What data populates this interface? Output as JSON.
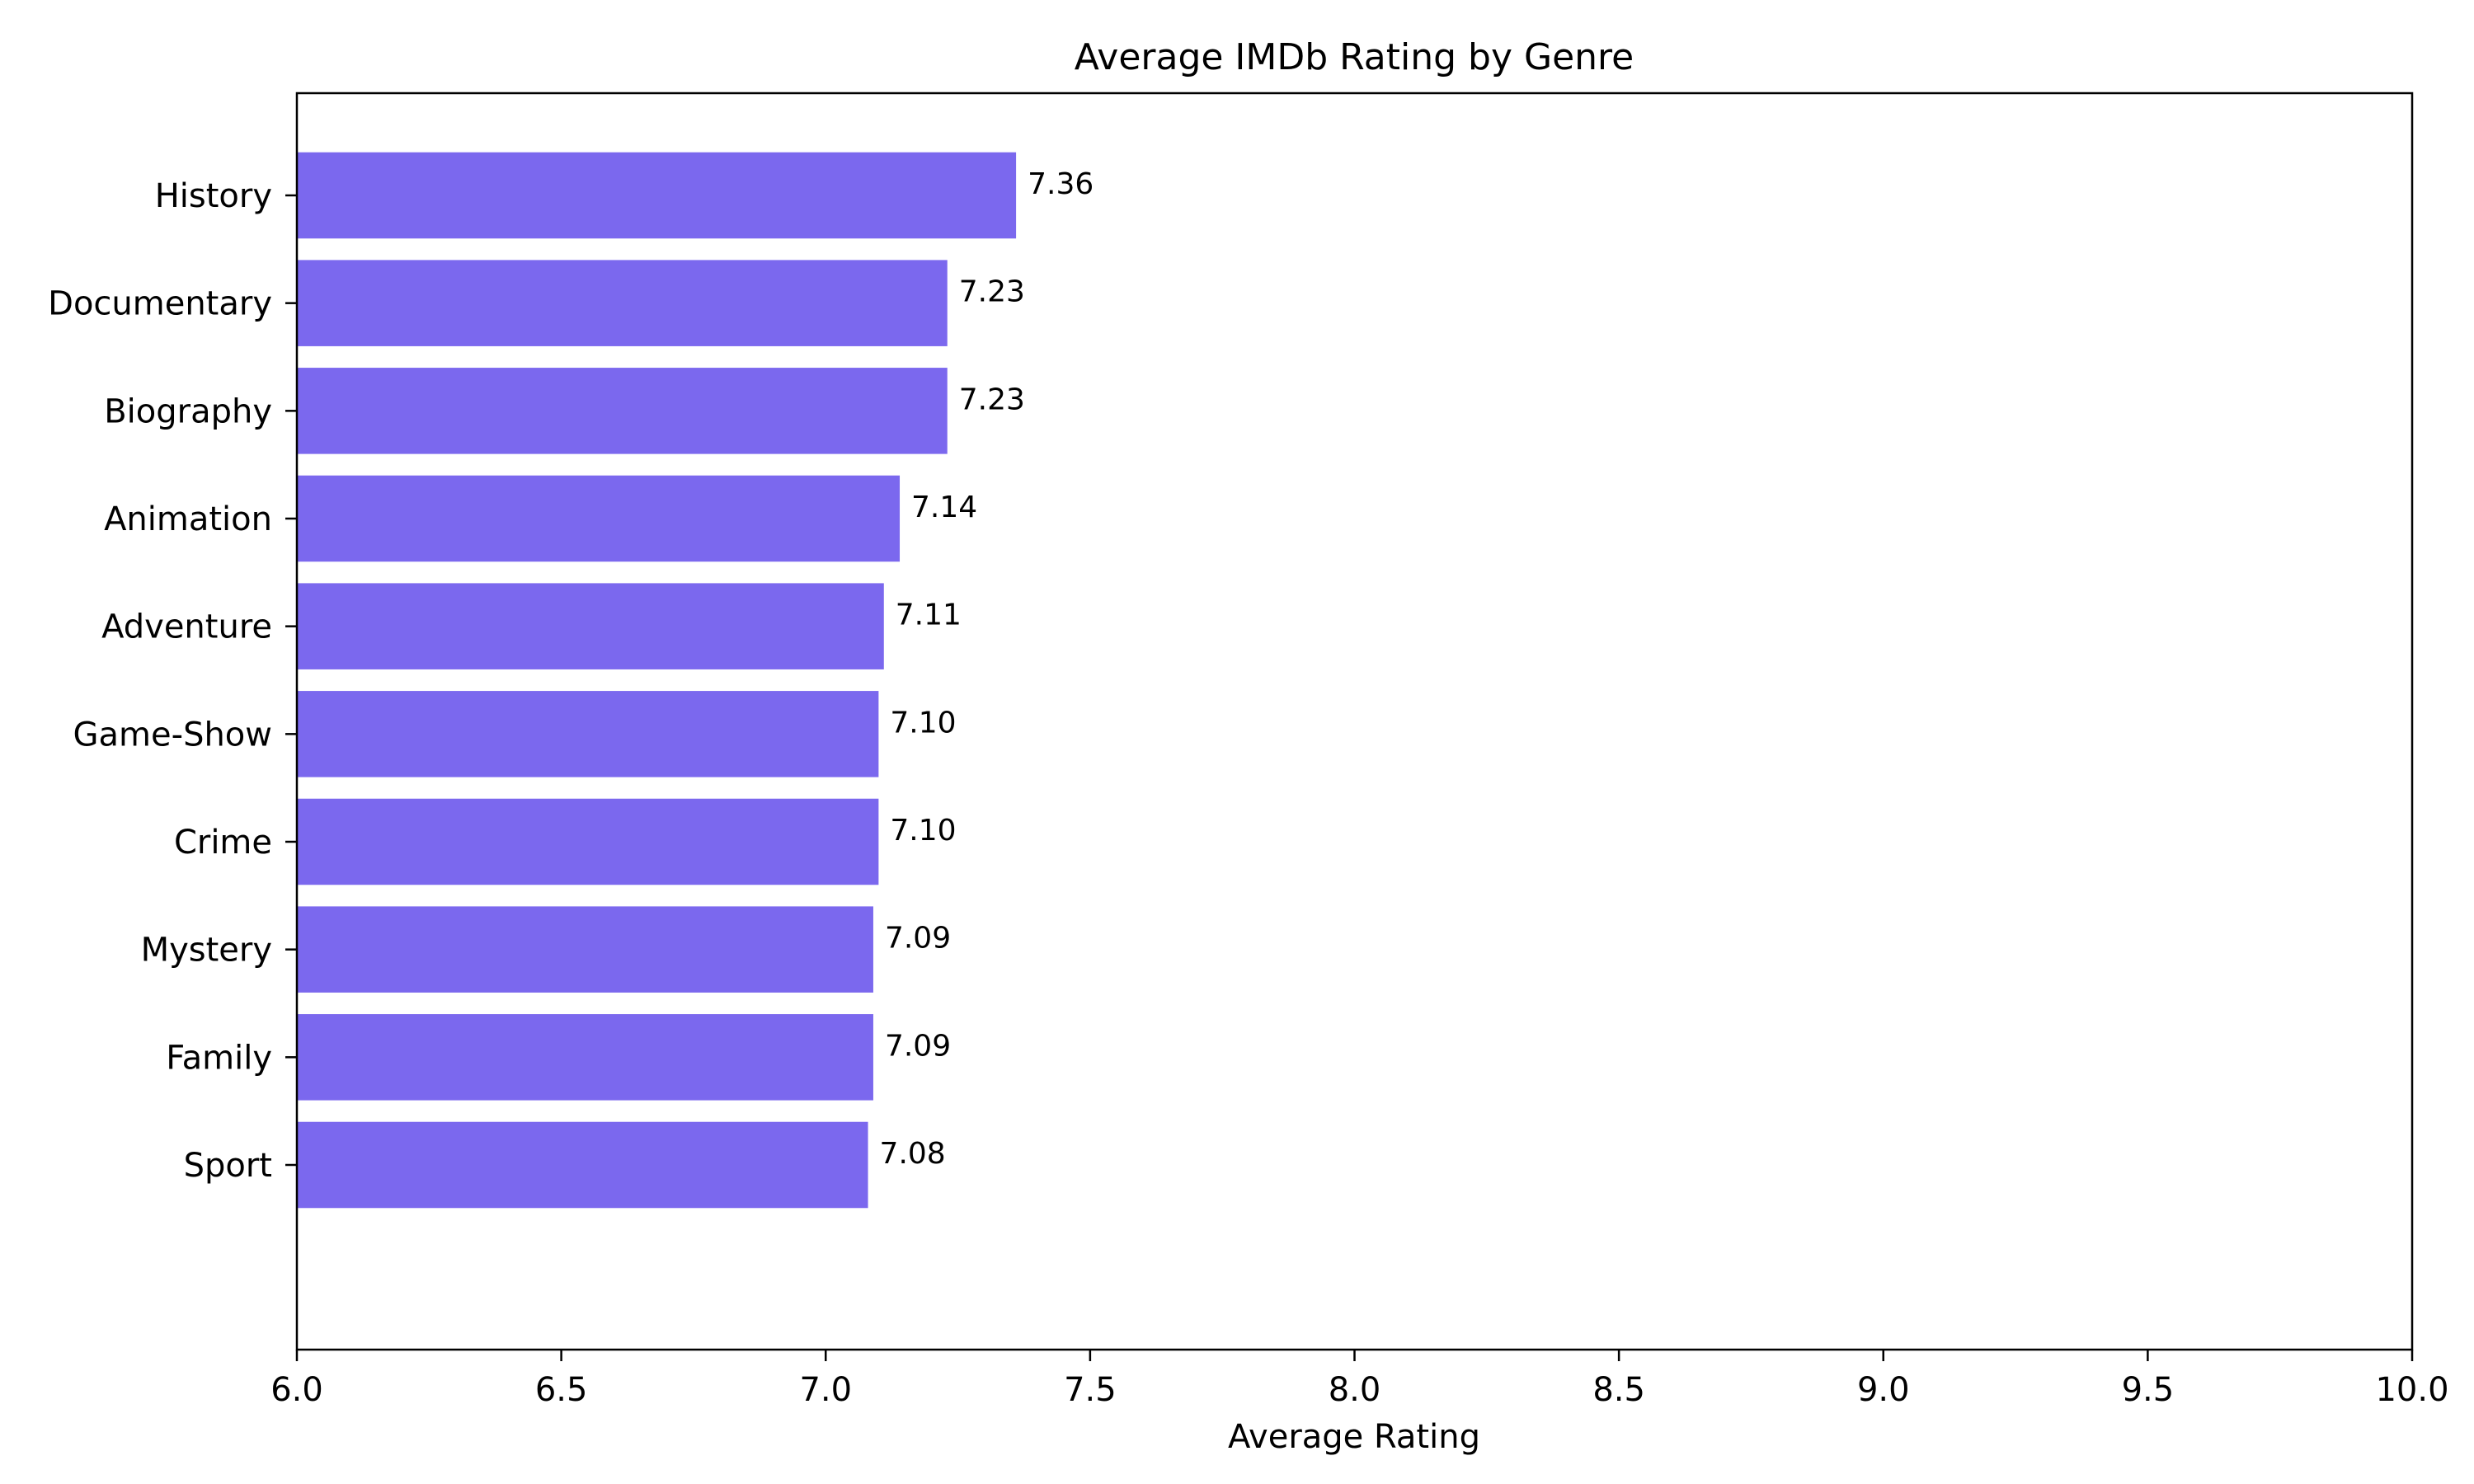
{
  "chart_data": {
    "type": "bar",
    "orientation": "horizontal",
    "title": "Average IMDb Rating by Genre",
    "xlabel": "Average Rating",
    "ylabel": "",
    "xlim": [
      6.0,
      10.0
    ],
    "x_ticks": [
      6.0,
      6.5,
      7.0,
      7.5,
      8.0,
      8.5,
      9.0,
      9.5,
      10.0
    ],
    "x_tick_labels": [
      "6.0",
      "6.5",
      "7.0",
      "7.5",
      "8.0",
      "8.5",
      "9.0",
      "9.5",
      "10.0"
    ],
    "categories": [
      "History",
      "Documentary",
      "Biography",
      "Animation",
      "Adventure",
      "Game-Show",
      "Crime",
      "Mystery",
      "Family",
      "Sport"
    ],
    "values": [
      7.36,
      7.23,
      7.23,
      7.14,
      7.11,
      7.1,
      7.1,
      7.09,
      7.09,
      7.08
    ],
    "value_labels": [
      "7.36",
      "7.23",
      "7.23",
      "7.14",
      "7.11",
      "7.10",
      "7.10",
      "7.09",
      "7.09",
      "7.08"
    ],
    "bar_color": "#7b68ee",
    "grid": false,
    "legend": "none"
  }
}
